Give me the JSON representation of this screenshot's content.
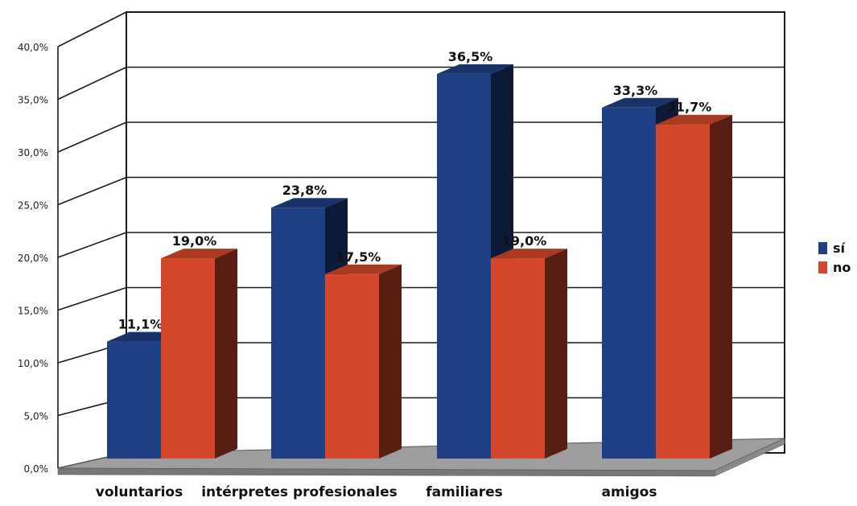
{
  "chart_data": {
    "type": "bar",
    "categories": [
      "voluntarios",
      "intérpretes profesionales",
      "familiares",
      "amigos"
    ],
    "series": [
      {
        "name": "sí",
        "values": [
          11.1,
          23.8,
          36.5,
          33.3
        ],
        "labels": [
          "11,1%",
          "23,8%",
          "36,5%",
          "33,3%"
        ]
      },
      {
        "name": "no",
        "values": [
          19.0,
          17.5,
          19.0,
          31.7
        ],
        "labels": [
          "19,0%",
          "17,5%",
          "19,0%",
          "31,7%"
        ]
      }
    ],
    "ylim": [
      0,
      40
    ],
    "yticks": [
      "0,0%",
      "5,0%",
      "10,0%",
      "15,0%",
      "20,0%",
      "25,0%",
      "30,0%",
      "35,0%",
      "40,0%"
    ],
    "grid": true,
    "legend_position": "right",
    "colors": {
      "si": "#1F3F84",
      "no": "#D5472A",
      "floor": "#9E9E9E"
    }
  }
}
